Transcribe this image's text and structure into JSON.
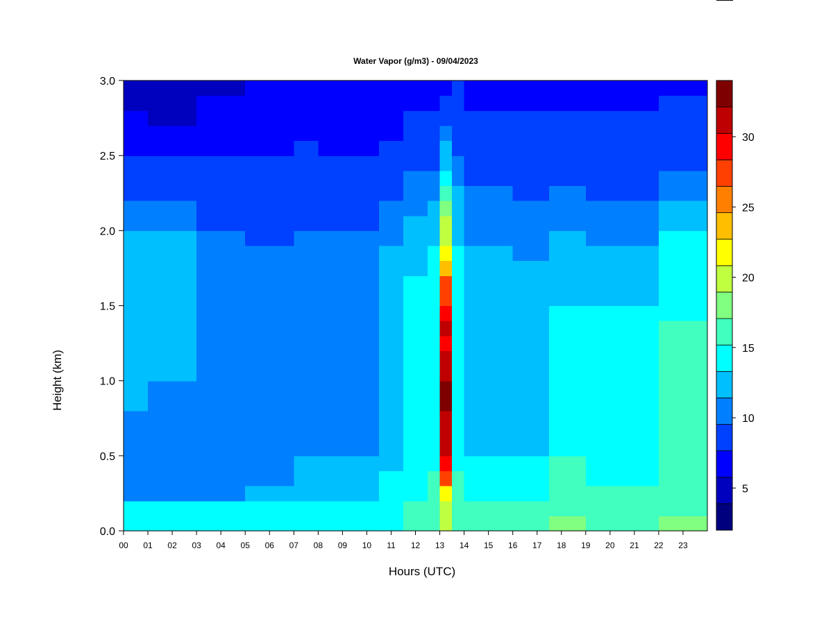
{
  "chart_data": {
    "type": "heatmap",
    "title": "Water Vapor (g/m3) - 09/04/2023",
    "xlabel": "Hours (UTC)",
    "ylabel": "Height (km)",
    "x_ticks": [
      "00",
      "01",
      "02",
      "03",
      "04",
      "05",
      "06",
      "07",
      "08",
      "09",
      "10",
      "11",
      "12",
      "13",
      "14",
      "15",
      "16",
      "17",
      "18",
      "19",
      "20",
      "21",
      "22",
      "23"
    ],
    "y_ticks": [
      "0.0",
      "0.5",
      "1.0",
      "1.5",
      "2.0",
      "2.5",
      "3.0"
    ],
    "xlim": [
      0,
      24
    ],
    "ylim": [
      0,
      3.0
    ],
    "colorbar": {
      "range": [
        2,
        34
      ],
      "ticks": [
        "5",
        "10",
        "15",
        "20",
        "25",
        "30"
      ],
      "level_colors": [
        "#00007f",
        "#0000bf",
        "#0000ff",
        "#0040ff",
        "#0080ff",
        "#00bfff",
        "#00ffff",
        "#40ffbf",
        "#80ff80",
        "#bfff40",
        "#ffff00",
        "#ffbf00",
        "#ff8000",
        "#ff4000",
        "#ff0000",
        "#bf0000",
        "#7f0000"
      ]
    },
    "height_km": [
      0.05,
      0.15,
      0.25,
      0.35,
      0.45,
      0.55,
      0.65,
      0.75,
      0.85,
      0.95,
      1.05,
      1.15,
      1.25,
      1.35,
      1.45,
      1.55,
      1.65,
      1.75,
      1.85,
      1.95,
      2.05,
      2.15,
      2.25,
      2.35,
      2.45,
      2.55,
      2.65,
      2.75,
      2.85,
      2.95
    ],
    "hour_utc": [
      0.25,
      0.75,
      1.25,
      1.75,
      2.25,
      2.75,
      3.25,
      3.75,
      4.25,
      4.75,
      5.25,
      5.75,
      6.25,
      6.75,
      7.25,
      7.75,
      8.25,
      8.75,
      9.25,
      9.75,
      10.25,
      10.75,
      11.25,
      11.75,
      12.25,
      12.75,
      13.25,
      13.75,
      14.25,
      14.75,
      15.25,
      15.75,
      16.25,
      16.75,
      17.25,
      17.75,
      18.25,
      18.75,
      19.25,
      19.75,
      20.25,
      20.75,
      21.25,
      21.75,
      22.25,
      22.75,
      23.25,
      23.75
    ],
    "vertical_profiles": [
      {
        "hours": [
          0,
          1
        ],
        "values": [
          14.0,
          13.5,
          11.0,
          10.5,
          10.0,
          10.0,
          10.0,
          10.0,
          11.5,
          11.5,
          11.5,
          11.5,
          11.5,
          11.5,
          11.5,
          11.5,
          11.5,
          11.5,
          11.5,
          11.5,
          10.0,
          10.0,
          9.0,
          9.0,
          8.0,
          7.5,
          7.0,
          6.5,
          5.5,
          5.0
        ]
      },
      {
        "hours": [
          1,
          3
        ],
        "values": [
          14.0,
          13.5,
          11.0,
          10.5,
          10.0,
          10.0,
          10.0,
          10.0,
          10.5,
          10.5,
          11.5,
          11.5,
          11.5,
          11.5,
          11.5,
          11.5,
          11.5,
          11.5,
          11.5,
          11.5,
          10.0,
          10.0,
          9.0,
          8.5,
          8.0,
          7.0,
          6.5,
          5.5,
          5.0,
          4.5
        ]
      },
      {
        "hours": [
          3,
          5
        ],
        "values": [
          14.0,
          13.5,
          11.0,
          10.5,
          10.0,
          10.0,
          10.0,
          10.0,
          10.0,
          10.0,
          10.0,
          10.0,
          10.0,
          10.0,
          10.0,
          10.0,
          10.0,
          10.0,
          10.0,
          10.0,
          9.5,
          9.5,
          9.0,
          8.5,
          8.0,
          7.5,
          7.0,
          6.5,
          6.0,
          5.5
        ]
      },
      {
        "hours": [
          5,
          7
        ],
        "values": [
          14.0,
          13.5,
          12.0,
          10.5,
          10.0,
          10.0,
          10.0,
          10.0,
          10.0,
          10.0,
          10.0,
          10.0,
          10.0,
          10.0,
          10.0,
          10.0,
          10.0,
          10.0,
          10.0,
          9.5,
          9.5,
          9.5,
          9.0,
          8.5,
          8.0,
          7.5,
          7.0,
          7.0,
          7.0,
          6.5
        ]
      },
      {
        "hours": [
          7,
          8
        ],
        "values": [
          14.5,
          14.0,
          13.0,
          12.0,
          12.0,
          11.0,
          10.5,
          10.5,
          10.5,
          10.5,
          10.5,
          10.5,
          10.5,
          10.5,
          10.5,
          10.5,
          10.5,
          10.5,
          10.0,
          10.0,
          9.5,
          9.5,
          9.0,
          8.5,
          8.0,
          8.0,
          7.5,
          7.0,
          7.0,
          7.0
        ]
      },
      {
        "hours": [
          8,
          10.5
        ],
        "values": [
          14.5,
          14.0,
          13.0,
          12.0,
          11.5,
          10.5,
          10.0,
          10.0,
          10.5,
          10.5,
          10.5,
          10.5,
          10.0,
          10.0,
          10.0,
          10.0,
          10.0,
          10.0,
          10.0,
          10.0,
          9.5,
          9.0,
          9.0,
          8.5,
          8.0,
          7.5,
          7.0,
          6.5,
          6.0,
          6.0
        ]
      },
      {
        "hours": [
          10.5,
          11.5
        ],
        "values": [
          15.0,
          14.5,
          14.0,
          13.5,
          13.0,
          13.0,
          12.5,
          12.5,
          12.5,
          12.5,
          12.5,
          12.5,
          12.5,
          12.5,
          12.5,
          12.5,
          12.5,
          12.5,
          12.0,
          11.0,
          10.5,
          10.0,
          9.5,
          9.0,
          8.5,
          8.0,
          7.5,
          7.5,
          7.0,
          7.0
        ]
      },
      {
        "hours": [
          11.5,
          12.5
        ],
        "values": [
          16.0,
          15.5,
          15.0,
          14.5,
          14.0,
          14.0,
          13.5,
          13.5,
          13.5,
          13.5,
          13.5,
          13.5,
          13.5,
          13.5,
          13.5,
          13.5,
          13.5,
          13.0,
          13.0,
          12.5,
          12.0,
          11.0,
          10.5,
          10.0,
          9.5,
          9.0,
          8.5,
          8.0,
          7.5,
          7.5
        ]
      },
      {
        "hours": [
          12.5,
          13
        ],
        "values": [
          17.0,
          16.5,
          16.0,
          15.5,
          15.0,
          15.0,
          14.5,
          14.5,
          14.5,
          14.5,
          14.5,
          14.5,
          14.5,
          14.5,
          14.5,
          14.5,
          14.0,
          13.5,
          13.5,
          13.0,
          12.0,
          11.5,
          11.0,
          10.0,
          9.5,
          9.0,
          8.5,
          8.0,
          7.5,
          7.5
        ]
      },
      {
        "hours": [
          13,
          13.5
        ],
        "values": [
          19.0,
          20.5,
          22.5,
          26.5,
          30.0,
          31.0,
          31.0,
          31.0,
          33.0,
          33.0,
          32.0,
          31.0,
          30.0,
          30.5,
          29.5,
          28.0,
          27.0,
          24.0,
          22.5,
          20.0,
          19.0,
          17.5,
          16.0,
          14.0,
          13.0,
          11.5,
          10.0,
          9.0,
          8.0,
          7.5
        ]
      },
      {
        "hours": [
          13.5,
          14
        ],
        "values": [
          17.0,
          16.5,
          16.0,
          15.5,
          15.0,
          15.0,
          15.0,
          15.0,
          15.0,
          15.0,
          15.0,
          15.0,
          15.0,
          15.0,
          14.5,
          14.5,
          14.0,
          13.5,
          13.5,
          13.0,
          12.5,
          12.0,
          11.5,
          11.0,
          10.0,
          9.5,
          9.0,
          8.5,
          8.0,
          8.0
        ]
      },
      {
        "hours": [
          14,
          16
        ],
        "values": [
          16.0,
          15.5,
          15.0,
          14.0,
          13.5,
          13.0,
          13.0,
          13.0,
          13.0,
          13.0,
          13.0,
          13.0,
          13.0,
          13.0,
          13.0,
          12.5,
          12.5,
          12.0,
          11.5,
          11.0,
          10.5,
          10.0,
          10.0,
          9.5,
          9.0,
          8.5,
          8.0,
          8.0,
          7.5,
          7.5
        ]
      },
      {
        "hours": [
          16,
          17.5
        ],
        "values": [
          16.0,
          15.5,
          15.0,
          14.0,
          13.5,
          13.0,
          13.0,
          13.0,
          13.0,
          13.0,
          13.0,
          13.0,
          13.0,
          13.0,
          13.0,
          12.5,
          12.0,
          11.5,
          11.0,
          10.5,
          10.0,
          10.0,
          9.5,
          9.0,
          9.0,
          8.5,
          8.0,
          8.0,
          7.5,
          7.5
        ]
      },
      {
        "hours": [
          17.5,
          19
        ],
        "values": [
          17.5,
          17.0,
          16.5,
          16.0,
          15.5,
          15.0,
          15.0,
          15.0,
          15.0,
          15.0,
          15.0,
          14.5,
          14.5,
          14.0,
          13.5,
          13.0,
          13.0,
          12.5,
          12.0,
          11.5,
          11.0,
          10.5,
          10.0,
          9.5,
          9.0,
          8.5,
          8.0,
          8.0,
          7.5,
          7.5
        ]
      },
      {
        "hours": [
          19,
          22
        ],
        "values": [
          16.0,
          16.0,
          15.5,
          15.0,
          14.0,
          13.5,
          13.5,
          14.0,
          14.5,
          14.5,
          14.5,
          14.5,
          14.5,
          14.0,
          13.5,
          13.0,
          12.5,
          12.0,
          11.5,
          11.0,
          10.5,
          10.0,
          9.5,
          9.0,
          9.0,
          8.5,
          8.0,
          8.0,
          7.5,
          7.5
        ]
      },
      {
        "hours": [
          22,
          24
        ],
        "values": [
          17.5,
          17.0,
          16.5,
          16.0,
          15.5,
          15.5,
          15.5,
          15.5,
          15.5,
          15.5,
          15.5,
          15.5,
          15.5,
          15.5,
          15.0,
          15.0,
          15.0,
          14.5,
          14.0,
          13.5,
          12.5,
          12.0,
          11.0,
          10.0,
          9.5,
          9.0,
          8.5,
          8.0,
          8.0,
          7.5
        ]
      }
    ]
  }
}
